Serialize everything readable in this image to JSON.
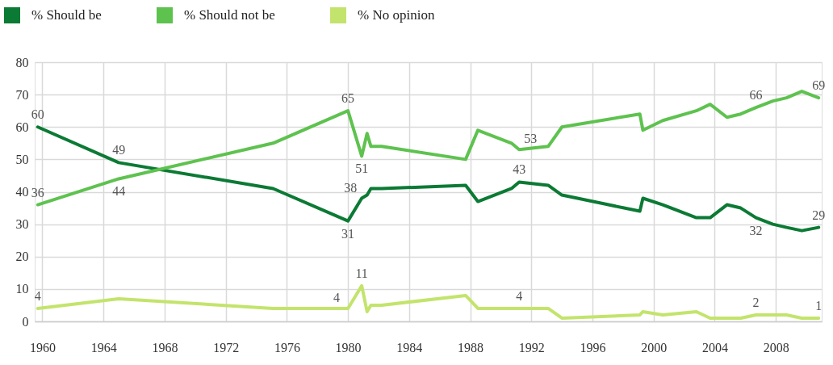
{
  "chart_data": {
    "type": "line",
    "x": [
      1959.7,
      1965.0,
      1975.1,
      1980.0,
      1980.9,
      1981.25,
      1981.5,
      1982.2,
      1987.7,
      1988.5,
      1990.7,
      1991.2,
      1993.1,
      1994.0,
      1999.1,
      1999.3,
      2000.6,
      2002.8,
      2003.7,
      2004.8,
      2005.7,
      2006.7,
      2007.8,
      2008.7,
      2009.7,
      2010.8
    ],
    "series": [
      {
        "name": "% Should be",
        "color": "#0b7a34",
        "values": [
          60,
          49,
          41,
          31,
          38,
          39,
          41,
          41,
          42,
          37,
          41,
          43,
          42,
          39,
          34,
          38,
          36,
          32,
          32,
          36,
          35,
          32,
          30,
          29,
          28,
          29
        ],
        "value_labels": [
          "60",
          "49",
          null,
          "31",
          "38",
          null,
          null,
          null,
          null,
          null,
          null,
          "43",
          null,
          null,
          null,
          null,
          null,
          null,
          null,
          null,
          null,
          "32",
          null,
          null,
          null,
          "29"
        ]
      },
      {
        "name": "% Should not be",
        "color": "#5ec24f",
        "values": [
          36,
          44,
          55,
          65,
          51,
          58,
          54,
          54,
          50,
          59,
          55,
          53,
          54,
          60,
          64,
          59,
          62,
          65,
          67,
          63,
          64,
          66,
          68,
          69,
          71,
          69
        ],
        "value_labels": [
          "36",
          "44",
          null,
          "65",
          "51",
          null,
          null,
          null,
          null,
          null,
          null,
          "53",
          null,
          null,
          null,
          null,
          null,
          null,
          null,
          null,
          null,
          "66",
          null,
          null,
          null,
          "69"
        ]
      },
      {
        "name": "% No opinion",
        "color": "#c3e46c",
        "values": [
          4,
          7,
          4,
          4,
          11,
          3,
          5,
          5,
          8,
          4,
          4,
          4,
          4,
          1,
          2,
          3,
          2,
          3,
          1,
          1,
          1,
          2,
          2,
          2,
          1,
          1
        ],
        "value_labels": [
          "4",
          null,
          null,
          "4",
          "11",
          null,
          null,
          null,
          null,
          null,
          null,
          "4",
          null,
          null,
          null,
          null,
          null,
          null,
          null,
          null,
          null,
          "2",
          null,
          null,
          null,
          "1"
        ]
      }
    ],
    "xlim": [
      1959.5,
      2011
    ],
    "xticks": [
      1960,
      1964,
      1968,
      1972,
      1976,
      1980,
      1984,
      1988,
      1992,
      1996,
      2000,
      2004,
      2008
    ],
    "ylim": [
      0,
      80
    ],
    "yticks": [
      0,
      10,
      20,
      30,
      40,
      50,
      60,
      70,
      80
    ],
    "grid": true,
    "legend": "top left"
  }
}
